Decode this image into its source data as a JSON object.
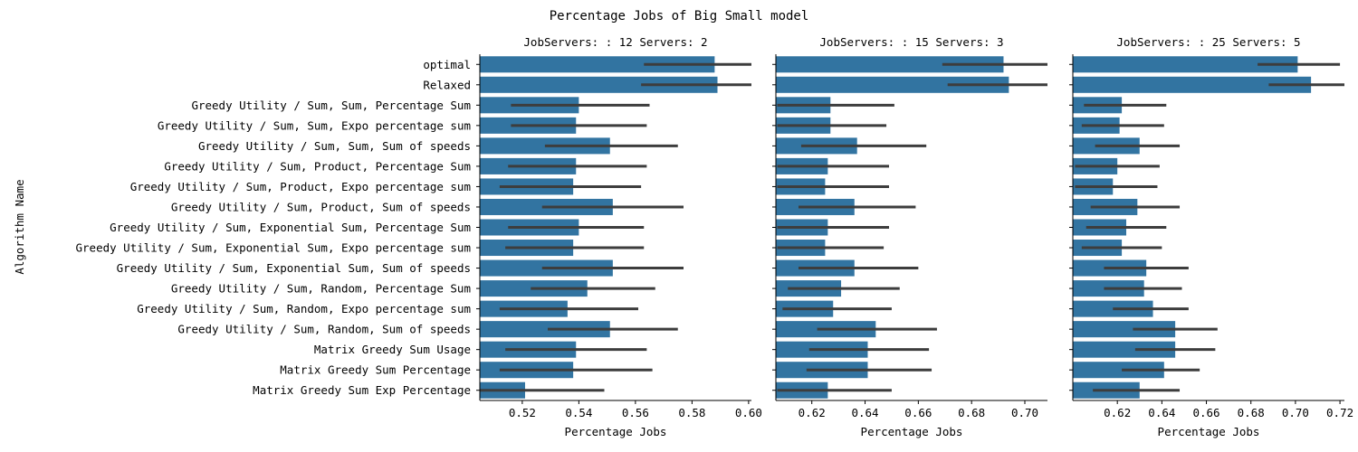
{
  "suptitle": "Percentage Jobs of Big Small model",
  "ylabel": "Algorithm Name",
  "xlabel": "Percentage Jobs",
  "colors": {
    "bar": "#3274a1",
    "errorbar": "#3d3d3d"
  },
  "chart_data": [
    {
      "type": "bar",
      "orientation": "horizontal",
      "title": "JobServers: : 12 Servers: 2",
      "xlabel": "Percentage Jobs",
      "ylabel": "Algorithm Name",
      "xlim": [
        0.505,
        0.601
      ],
      "xticks": [
        "0.52",
        "0.54",
        "0.56",
        "0.58",
        "0.60"
      ],
      "categories": [
        "optimal",
        "Relaxed",
        "Greedy Utility / Sum, Sum, Percentage Sum",
        "Greedy Utility / Sum, Sum, Expo percentage sum",
        "Greedy Utility / Sum, Sum, Sum of speeds",
        "Greedy Utility / Sum, Product, Percentage Sum",
        "Greedy Utility / Sum, Product, Expo percentage sum",
        "Greedy Utility / Sum, Product, Sum of speeds",
        "Greedy Utility / Sum, Exponential Sum, Percentage Sum",
        "Greedy Utility / Sum, Exponential Sum, Expo percentage sum",
        "Greedy Utility / Sum, Exponential Sum, Sum of speeds",
        "Greedy Utility / Sum, Random, Percentage Sum",
        "Greedy Utility / Sum, Random, Expo percentage sum",
        "Greedy Utility / Sum, Random, Sum of speeds",
        "Matrix Greedy Sum Usage",
        "Matrix Greedy Sum Percentage",
        "Matrix Greedy Sum Exp Percentage"
      ],
      "values": [
        0.588,
        0.589,
        0.54,
        0.539,
        0.551,
        0.539,
        0.538,
        0.552,
        0.54,
        0.538,
        0.552,
        0.543,
        0.536,
        0.551,
        0.539,
        0.538,
        0.521
      ],
      "ci_low": [
        0.563,
        0.562,
        0.516,
        0.516,
        0.528,
        0.515,
        0.512,
        0.527,
        0.515,
        0.514,
        0.527,
        0.523,
        0.512,
        0.529,
        0.514,
        0.512,
        0.505
      ],
      "ci_high": [
        0.601,
        0.601,
        0.565,
        0.564,
        0.575,
        0.564,
        0.562,
        0.577,
        0.563,
        0.563,
        0.577,
        0.567,
        0.561,
        0.575,
        0.564,
        0.566,
        0.549
      ]
    },
    {
      "type": "bar",
      "orientation": "horizontal",
      "title": "JobServers: : 15 Servers: 3",
      "xlabel": "Percentage Jobs",
      "xlim": [
        0.6065,
        0.7085
      ],
      "xticks": [
        "0.62",
        "0.64",
        "0.66",
        "0.68",
        "0.70"
      ],
      "values": [
        0.692,
        0.694,
        0.627,
        0.627,
        0.637,
        0.626,
        0.625,
        0.636,
        0.626,
        0.625,
        0.636,
        0.631,
        0.628,
        0.644,
        0.641,
        0.641,
        0.626
      ],
      "ci_low": [
        0.669,
        0.671,
        0.607,
        0.607,
        0.616,
        0.607,
        0.607,
        0.615,
        0.607,
        0.607,
        0.615,
        0.611,
        0.609,
        0.622,
        0.619,
        0.618,
        0.607
      ],
      "ci_high": [
        0.7085,
        0.7085,
        0.651,
        0.648,
        0.663,
        0.649,
        0.649,
        0.659,
        0.649,
        0.647,
        0.66,
        0.653,
        0.65,
        0.667,
        0.664,
        0.665,
        0.65
      ]
    },
    {
      "type": "bar",
      "orientation": "horizontal",
      "title": "JobServers: : 25 Servers: 5",
      "xlabel": "Percentage Jobs",
      "xlim": [
        0.6,
        0.722
      ],
      "xticks": [
        "0.62",
        "0.64",
        "0.66",
        "0.68",
        "0.70",
        "0.72"
      ],
      "values": [
        0.701,
        0.707,
        0.622,
        0.621,
        0.63,
        0.62,
        0.618,
        0.629,
        0.624,
        0.622,
        0.633,
        0.632,
        0.636,
        0.646,
        0.646,
        0.641,
        0.63
      ],
      "ci_low": [
        0.683,
        0.688,
        0.605,
        0.604,
        0.61,
        0.601,
        0.601,
        0.608,
        0.606,
        0.604,
        0.614,
        0.614,
        0.618,
        0.627,
        0.628,
        0.622,
        0.609
      ],
      "ci_high": [
        0.72,
        0.722,
        0.642,
        0.641,
        0.648,
        0.639,
        0.638,
        0.648,
        0.642,
        0.64,
        0.652,
        0.649,
        0.652,
        0.665,
        0.664,
        0.657,
        0.648
      ]
    }
  ]
}
